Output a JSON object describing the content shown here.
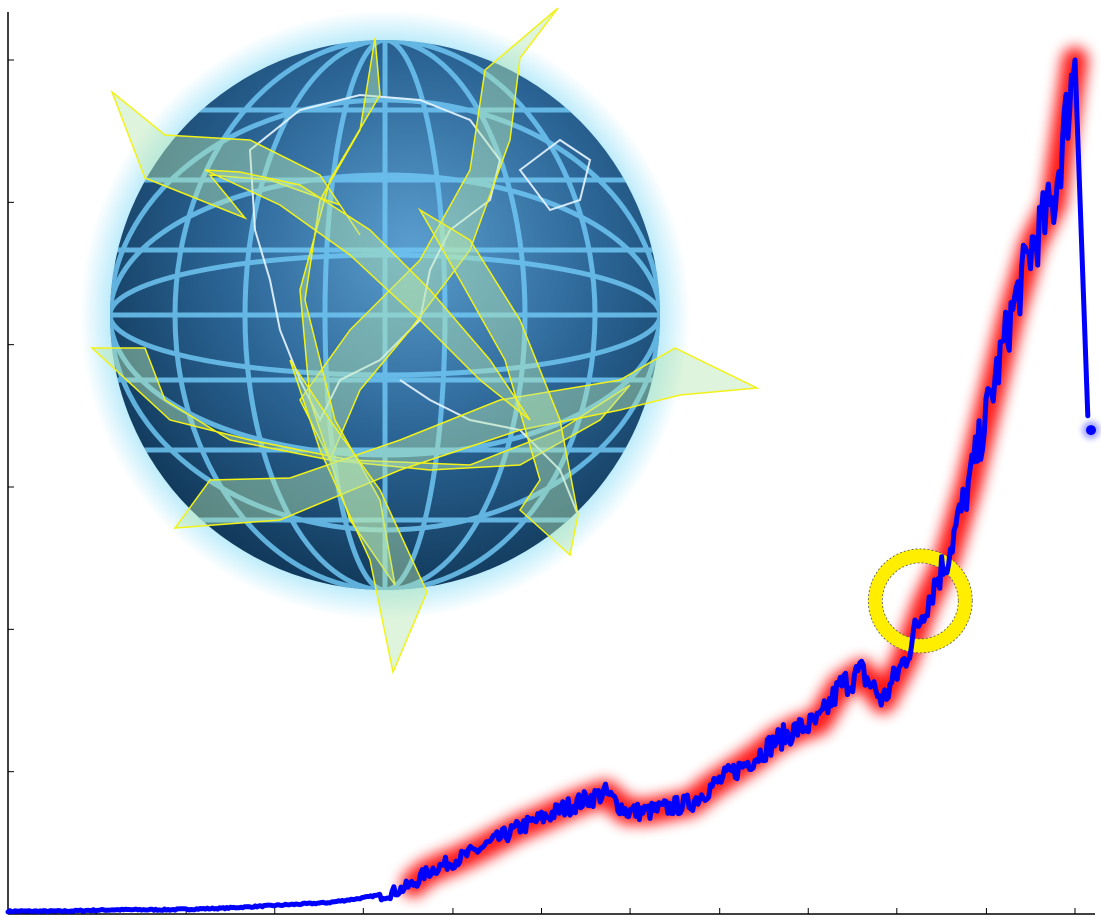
{
  "chart_data": {
    "type": "line",
    "title": "",
    "xlabel": "",
    "ylabel": "",
    "grid": false,
    "legend": "none",
    "xlim": [
      0,
      100
    ],
    "ylim": [
      0,
      6
    ],
    "x_ticks": [
      0,
      8.3,
      16.7,
      25,
      33.3,
      41.7,
      50,
      58.3,
      66.7,
      75,
      83.3,
      91.7,
      100
    ],
    "y_ticks": [
      1,
      2,
      3,
      4,
      5,
      6
    ],
    "series": [
      {
        "color": "#0000ff",
        "line_width": "thick",
        "x": [
          0,
          5,
          10,
          15,
          20,
          25,
          30,
          33,
          36,
          38,
          39,
          40,
          42,
          44,
          46,
          48,
          50,
          52,
          54,
          56,
          58,
          60,
          62,
          64,
          66,
          68,
          70,
          72,
          74,
          76,
          78,
          80,
          82,
          84,
          86,
          88,
          90,
          92,
          94,
          96,
          98,
          100
        ],
        "y": [
          0.02,
          0.02,
          0.03,
          0.03,
          0.04,
          0.06,
          0.08,
          0.11,
          0.15,
          0.21,
          0.28,
          0.32,
          0.38,
          0.45,
          0.53,
          0.61,
          0.67,
          0.74,
          0.8,
          0.85,
          0.72,
          0.72,
          0.75,
          0.78,
          0.9,
          1.0,
          1.1,
          1.22,
          1.3,
          1.35,
          1.6,
          1.7,
          1.5,
          1.78,
          2.18,
          2.5,
          3.0,
          3.6,
          4.2,
          4.7,
          5.0,
          6.0
        ]
      },
      {
        "color": "#0000ff",
        "marker": "dot",
        "x": [
          101.5
        ],
        "y": [
          3.4
        ]
      }
    ],
    "trend_highlight": {
      "color": "#ff0000",
      "x_range": [
        38,
        100
      ]
    },
    "annotation": {
      "shape": "ring",
      "color": "#ffee00",
      "x": 85.5,
      "y": 2.2
    },
    "illustration": "globe-with-arrows"
  }
}
